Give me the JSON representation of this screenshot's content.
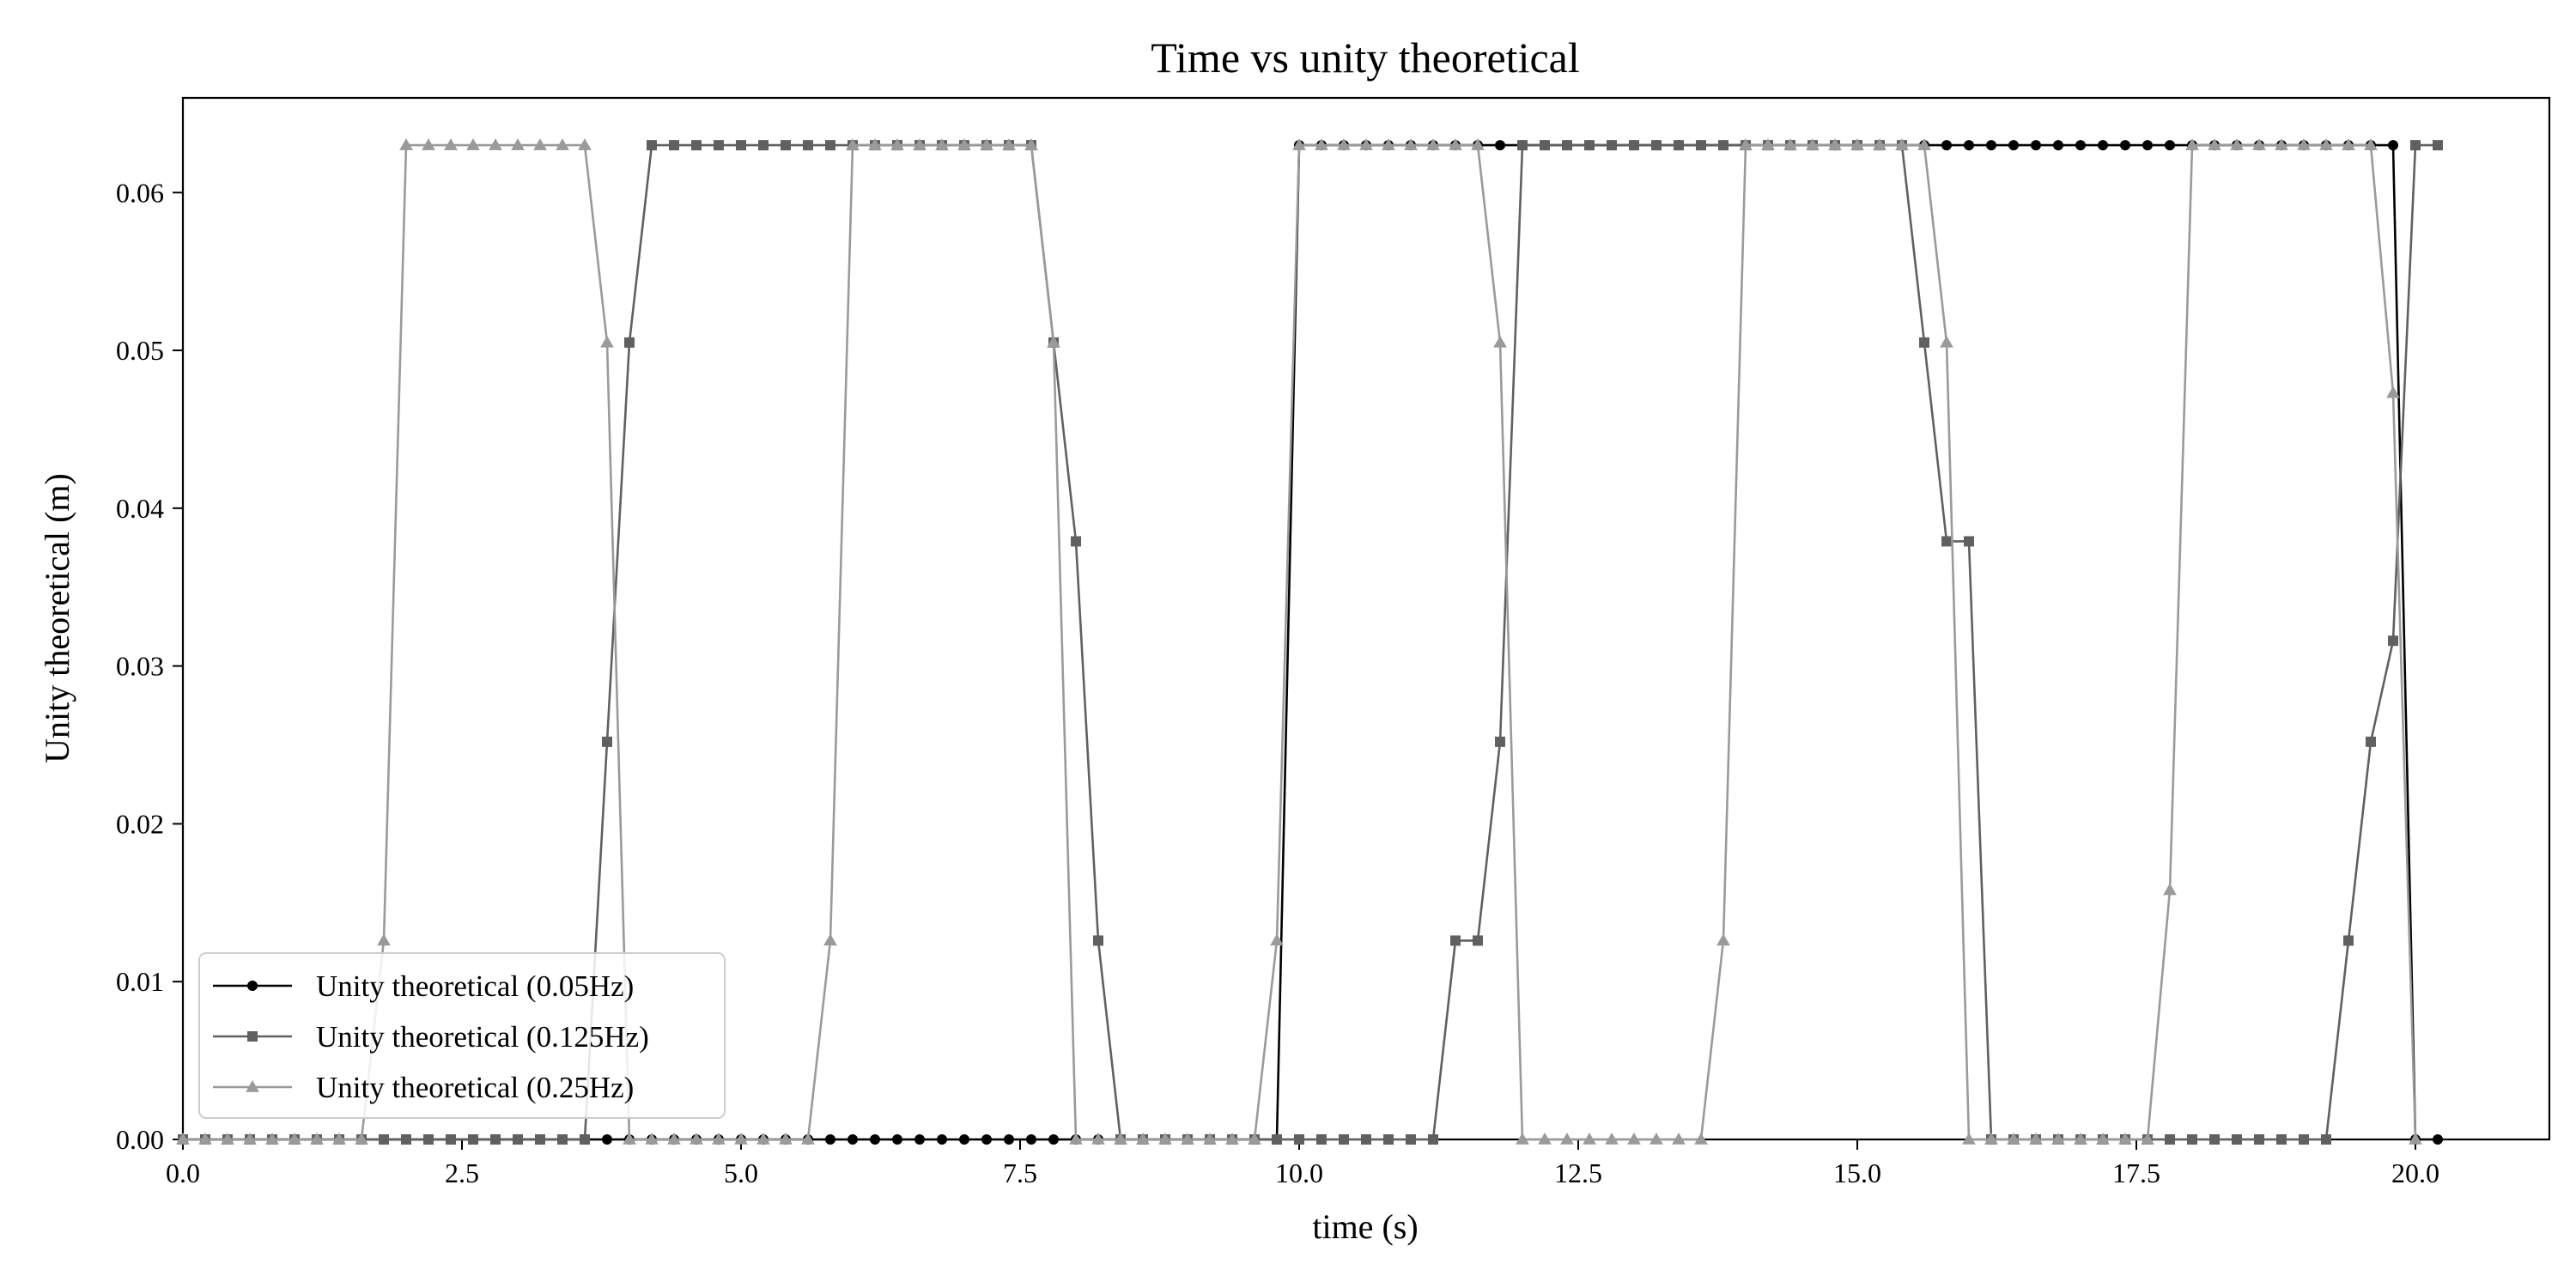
{
  "chart_data": {
    "type": "line",
    "title": "Time vs unity theoretical",
    "xlabel": "time (s)",
    "ylabel": "Unity theoretical (m)",
    "xlim": [
      0,
      21.2
    ],
    "ylim": [
      0,
      0.066
    ],
    "xticks": [
      0,
      2.5,
      5,
      7.5,
      10,
      12.5,
      15,
      17.5,
      20
    ],
    "xtick_labels": [
      "0.0",
      "2.5",
      "5.0",
      "7.5",
      "10.0",
      "12.5",
      "15.0",
      "17.5",
      "20.0"
    ],
    "yticks": [
      0,
      0.01,
      0.02,
      0.03,
      0.04,
      0.05,
      0.06
    ],
    "ytick_labels": [
      "0.00",
      "0.01",
      "0.02",
      "0.03",
      "0.04",
      "0.05",
      "0.06"
    ],
    "grid": false,
    "legend_position": "lower-left",
    "series": [
      {
        "name": "Unity theoretical (0.05Hz)",
        "color": "#000000",
        "marker": "circle",
        "x": [
          0,
          0.2,
          0.4,
          0.6,
          0.8,
          1.0,
          1.2,
          1.4,
          1.6,
          1.8,
          2.0,
          2.2,
          2.4,
          2.6,
          2.8,
          3.0,
          3.2,
          3.4,
          3.6,
          3.8,
          4.0,
          4.2,
          4.4,
          4.6,
          4.8,
          5.0,
          5.2,
          5.4,
          5.6,
          5.8,
          6.0,
          6.2,
          6.4,
          6.6,
          6.8,
          7.0,
          7.2,
          7.4,
          7.6,
          7.8,
          8.0,
          8.2,
          8.4,
          8.6,
          8.8,
          9.0,
          9.2,
          9.4,
          9.6,
          9.8,
          10.0,
          10.2,
          10.4,
          10.6,
          10.8,
          11.0,
          11.2,
          11.4,
          11.6,
          11.8,
          12.0,
          12.2,
          12.4,
          12.6,
          12.8,
          13.0,
          13.2,
          13.4,
          13.6,
          13.8,
          14.0,
          14.2,
          14.4,
          14.6,
          14.8,
          15.0,
          15.2,
          15.4,
          15.6,
          15.8,
          16.0,
          16.2,
          16.4,
          16.6,
          16.8,
          17.0,
          17.2,
          17.4,
          17.6,
          17.8,
          18.0,
          18.2,
          18.4,
          18.6,
          18.8,
          19.0,
          19.2,
          19.4,
          19.6,
          19.8,
          20.0,
          20.2
        ],
        "y": [
          0,
          0,
          0,
          0,
          0,
          0,
          0,
          0,
          0,
          0,
          0,
          0,
          0,
          0,
          0,
          0,
          0,
          0,
          0,
          0,
          0,
          0,
          0,
          0,
          0,
          0,
          0,
          0,
          0,
          0,
          0,
          0,
          0,
          0,
          0,
          0,
          0,
          0,
          0,
          0,
          0,
          0,
          0,
          0,
          0,
          0,
          0,
          0,
          0,
          0,
          0.063,
          0.063,
          0.063,
          0.063,
          0.063,
          0.063,
          0.063,
          0.063,
          0.063,
          0.063,
          0.063,
          0.063,
          0.063,
          0.063,
          0.063,
          0.063,
          0.063,
          0.063,
          0.063,
          0.063,
          0.063,
          0.063,
          0.063,
          0.063,
          0.063,
          0.063,
          0.063,
          0.063,
          0.063,
          0.063,
          0.063,
          0.063,
          0.063,
          0.063,
          0.063,
          0.063,
          0.063,
          0.063,
          0.063,
          0.063,
          0.063,
          0.063,
          0.063,
          0.063,
          0.063,
          0.063,
          0.063,
          0.063,
          0.063,
          0.063,
          0,
          0
        ]
      },
      {
        "name": "Unity theoretical (0.125Hz)",
        "color": "#606060",
        "marker": "square",
        "x": [
          0,
          0.2,
          0.4,
          0.6,
          0.8,
          1.0,
          1.2,
          1.4,
          1.6,
          1.8,
          2.0,
          2.2,
          2.4,
          2.6,
          2.8,
          3.0,
          3.2,
          3.4,
          3.6,
          3.8,
          4.0,
          4.2,
          4.4,
          4.6,
          4.8,
          5.0,
          5.2,
          5.4,
          5.6,
          5.8,
          6.0,
          6.2,
          6.4,
          6.6,
          6.8,
          7.0,
          7.2,
          7.4,
          7.6,
          7.8,
          8.0,
          8.2,
          8.4,
          8.6,
          8.8,
          9.0,
          9.2,
          9.4,
          9.6,
          9.8,
          10.0,
          10.2,
          10.4,
          10.6,
          10.8,
          11.0,
          11.2,
          11.4,
          11.6,
          11.8,
          12.0,
          12.2,
          12.4,
          12.6,
          12.8,
          13.0,
          13.2,
          13.4,
          13.6,
          13.8,
          14.0,
          14.2,
          14.4,
          14.6,
          14.8,
          15.0,
          15.2,
          15.4,
          15.6,
          15.8,
          16.0,
          16.2,
          16.4,
          16.6,
          16.8,
          17.0,
          17.2,
          17.4,
          17.6,
          17.8,
          18.0,
          18.2,
          18.4,
          18.6,
          18.8,
          19.0,
          19.2,
          19.4,
          19.6,
          19.8,
          20.0,
          20.2
        ],
        "y": [
          0,
          0,
          0,
          0,
          0,
          0,
          0,
          0,
          0,
          0,
          0,
          0,
          0,
          0,
          0,
          0,
          0,
          0,
          0,
          0.0252,
          0.0505,
          0.063,
          0.063,
          0.063,
          0.063,
          0.063,
          0.063,
          0.063,
          0.063,
          0.063,
          0.063,
          0.063,
          0.063,
          0.063,
          0.063,
          0.063,
          0.063,
          0.063,
          0.063,
          0.0505,
          0.0379,
          0.0126,
          0,
          0,
          0,
          0,
          0,
          0,
          0,
          0,
          0,
          0,
          0,
          0,
          0,
          0,
          0,
          0.0126,
          0.0126,
          0.0252,
          0.063,
          0.063,
          0.063,
          0.063,
          0.063,
          0.063,
          0.063,
          0.063,
          0.063,
          0.063,
          0.063,
          0.063,
          0.063,
          0.063,
          0.063,
          0.063,
          0.063,
          0.063,
          0.0505,
          0.0379,
          0.0379,
          0,
          0,
          0,
          0,
          0,
          0,
          0,
          0,
          0,
          0,
          0,
          0,
          0,
          0,
          0,
          0,
          0.0126,
          0.0252,
          0.0316,
          0.063,
          0.063
        ]
      },
      {
        "name": "Unity theoretical (0.25Hz)",
        "color": "#9a9a9a",
        "marker": "triangle",
        "x": [
          0,
          0.2,
          0.4,
          0.6,
          0.8,
          1.0,
          1.2,
          1.4,
          1.6,
          1.8,
          2.0,
          2.2,
          2.4,
          2.6,
          2.8,
          3.0,
          3.2,
          3.4,
          3.6,
          3.8,
          4.0,
          4.2,
          4.4,
          4.6,
          4.8,
          5.0,
          5.2,
          5.4,
          5.6,
          5.8,
          6.0,
          6.2,
          6.4,
          6.6,
          6.8,
          7.0,
          7.2,
          7.4,
          7.6,
          7.8,
          8.0,
          8.2,
          8.4,
          8.6,
          8.8,
          9.0,
          9.2,
          9.4,
          9.6,
          9.8,
          10.0,
          10.2,
          10.4,
          10.6,
          10.8,
          11.0,
          11.2,
          11.4,
          11.6,
          11.8,
          12.0,
          12.2,
          12.4,
          12.6,
          12.8,
          13.0,
          13.2,
          13.4,
          13.6,
          13.8,
          14.0,
          14.2,
          14.4,
          14.6,
          14.8,
          15.0,
          15.2,
          15.4,
          15.6,
          15.8,
          16.0,
          16.2,
          16.4,
          16.6,
          16.8,
          17.0,
          17.2,
          17.4,
          17.6,
          17.8,
          18.0,
          18.2,
          18.4,
          18.6,
          18.8,
          19.0,
          19.2,
          19.4,
          19.6,
          19.8,
          20.0
        ],
        "y": [
          0,
          0,
          0,
          0,
          0,
          0,
          0,
          0,
          0,
          0.0126,
          0.063,
          0.063,
          0.063,
          0.063,
          0.063,
          0.063,
          0.063,
          0.063,
          0.063,
          0.0505,
          0,
          0,
          0,
          0,
          0,
          0,
          0,
          0,
          0,
          0.0126,
          0.063,
          0.063,
          0.063,
          0.063,
          0.063,
          0.063,
          0.063,
          0.063,
          0.063,
          0.0505,
          0,
          0,
          0,
          0,
          0,
          0,
          0,
          0,
          0,
          0.0126,
          0.063,
          0.063,
          0.063,
          0.063,
          0.063,
          0.063,
          0.063,
          0.063,
          0.063,
          0.0505,
          0,
          0,
          0,
          0,
          0,
          0,
          0,
          0,
          0,
          0.0126,
          0.063,
          0.063,
          0.063,
          0.063,
          0.063,
          0.063,
          0.063,
          0.063,
          0.063,
          0.0505,
          0,
          0,
          0,
          0,
          0,
          0,
          0,
          0,
          0,
          0.0158,
          0.063,
          0.063,
          0.063,
          0.063,
          0.063,
          0.063,
          0.063,
          0.063,
          0.063,
          0.0473,
          0
        ]
      }
    ]
  }
}
